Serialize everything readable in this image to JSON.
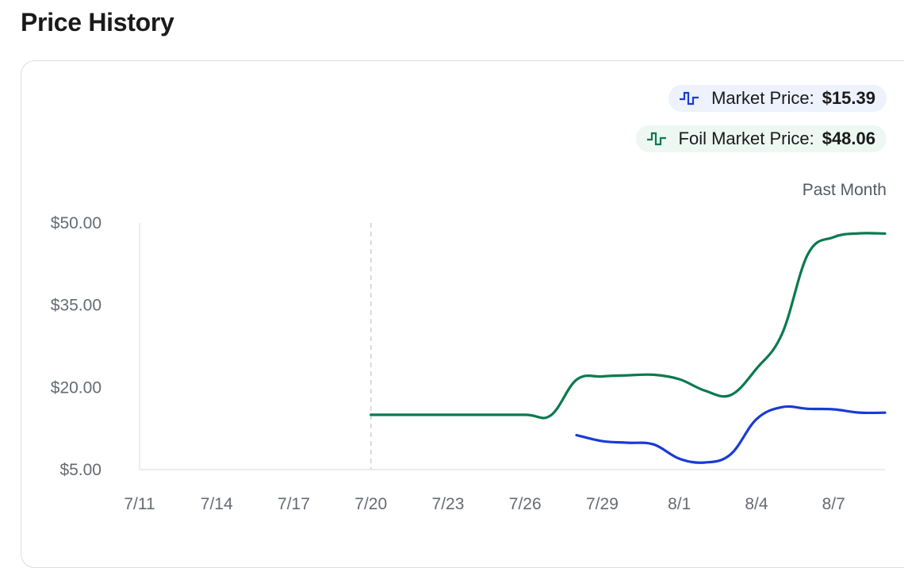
{
  "page": {
    "title": "Price History"
  },
  "legend": {
    "market": {
      "label": "Market Price:",
      "value": "$15.39",
      "icon": "step-line-icon",
      "color": "#1a3ad6"
    },
    "foil": {
      "label": "Foil Market Price:",
      "value": "$48.06",
      "icon": "step-line-icon",
      "color": "#0a7a4e"
    }
  },
  "range_label": "Past Month",
  "chart_data": {
    "type": "line",
    "title": "",
    "xlabel": "",
    "ylabel": "",
    "x_ticks": [
      "7/11",
      "7/14",
      "7/17",
      "7/20",
      "7/23",
      "7/26",
      "7/29",
      "8/1",
      "8/4",
      "8/7"
    ],
    "y_ticks": [
      "$5.00",
      "$20.00",
      "$35.00",
      "$50.00"
    ],
    "ylim": [
      5,
      50
    ],
    "xlim": [
      "7/11",
      "8/9"
    ],
    "marker_date": "7/20",
    "grid": false,
    "series": [
      {
        "name": "Foil Market Price",
        "color": "#0a7a4e",
        "points": [
          [
            "7/20",
            15.0
          ],
          [
            "7/22",
            15.0
          ],
          [
            "7/24",
            15.0
          ],
          [
            "7/26",
            15.0
          ],
          [
            "7/27",
            14.9
          ],
          [
            "7/28",
            21.4
          ],
          [
            "7/29",
            22.0
          ],
          [
            "7/30",
            22.2
          ],
          [
            "7/31",
            22.3
          ],
          [
            "8/1",
            21.5
          ],
          [
            "8/2",
            19.4
          ],
          [
            "8/3",
            18.6
          ],
          [
            "8/4",
            23.4
          ],
          [
            "8/5",
            29.8
          ],
          [
            "8/6",
            44.3
          ],
          [
            "8/7",
            47.4
          ],
          [
            "8/8",
            48.1
          ],
          [
            "8/9",
            48.06
          ]
        ]
      },
      {
        "name": "Market Price",
        "color": "#1a3ad6",
        "points": [
          [
            "7/28",
            11.3
          ],
          [
            "7/29",
            10.2
          ],
          [
            "7/30",
            9.9
          ],
          [
            "7/31",
            9.6
          ],
          [
            "8/1",
            7.0
          ],
          [
            "8/2",
            6.3
          ],
          [
            "8/3",
            7.8
          ],
          [
            "8/4",
            14.2
          ],
          [
            "8/5",
            16.4
          ],
          [
            "8/6",
            16.1
          ],
          [
            "8/7",
            16.0
          ],
          [
            "8/8",
            15.4
          ],
          [
            "8/9",
            15.39
          ]
        ]
      }
    ]
  }
}
